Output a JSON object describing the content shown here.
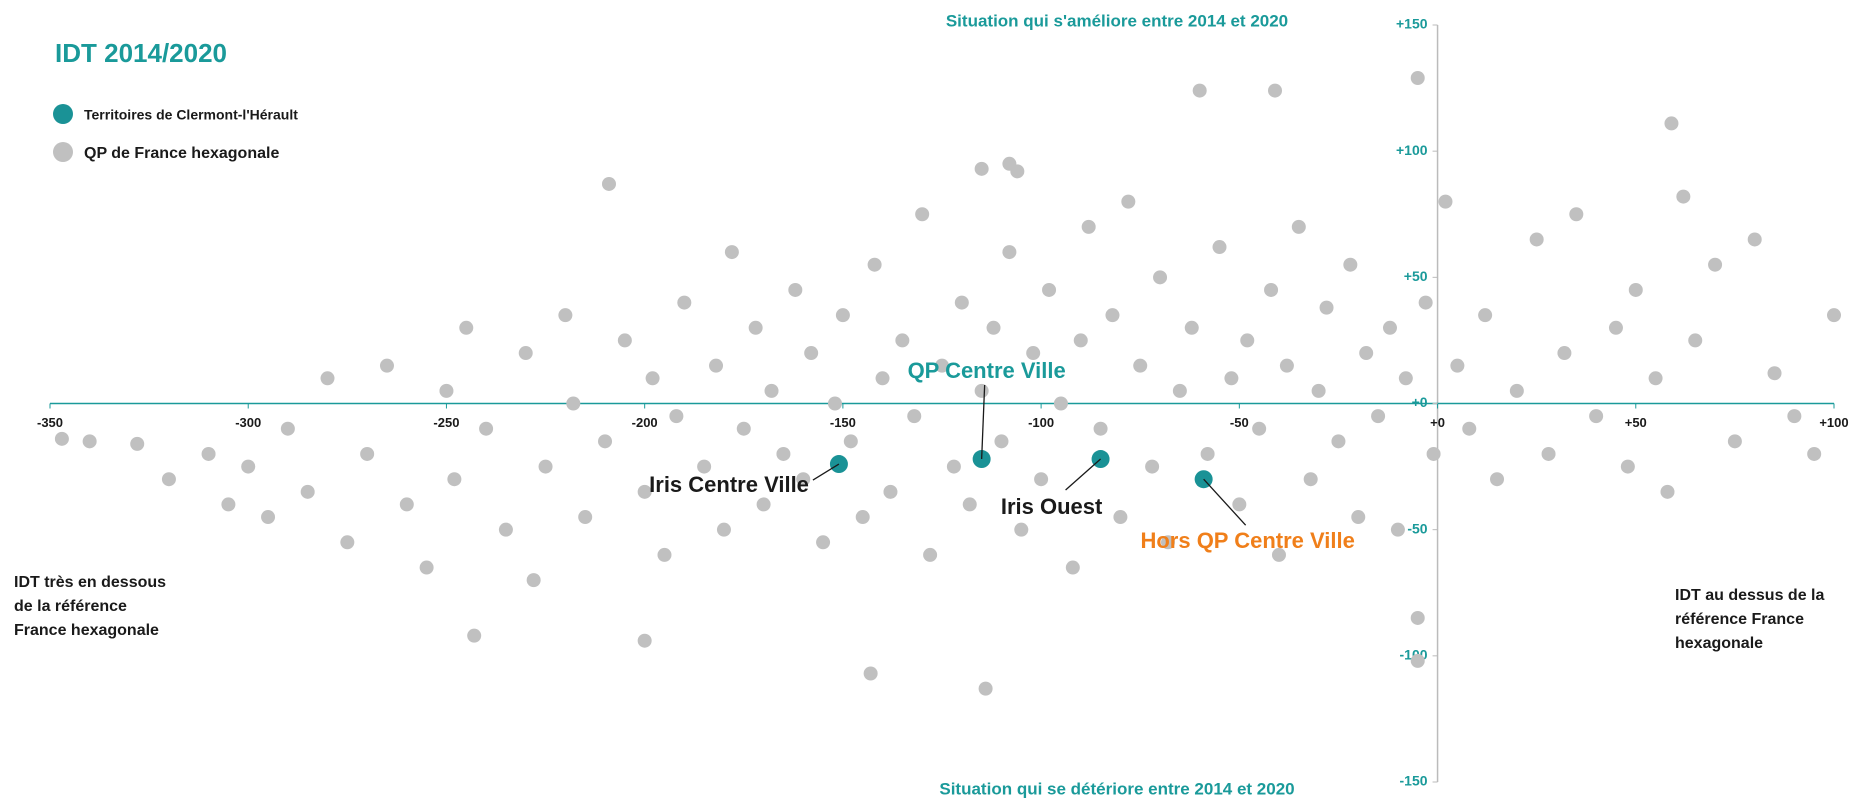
{
  "chart_data": {
    "type": "scatter",
    "title": "IDT 2014/2020",
    "top_annotation": "Situation qui s'améliore entre 2014 et 2020",
    "bottom_annotation": "Situation qui se détériore entre 2014 et 2020",
    "left_annotation": [
      "IDT très en dessous",
      "de la référence",
      "France hexagonale"
    ],
    "right_annotation": [
      "IDT au dessus de la",
      "référence France",
      "hexagonale"
    ],
    "xlim": [
      -350,
      100
    ],
    "ylim": [
      -150,
      150
    ],
    "xticks": [
      -350,
      -300,
      -250,
      -200,
      -150,
      -100,
      -50,
      {
        "value": 0,
        "label": "+0"
      },
      {
        "value": 50,
        "label": "+50"
      },
      {
        "value": 100,
        "label": "+100"
      }
    ],
    "yticks": [
      {
        "value": 150,
        "label": "+150"
      },
      {
        "value": 100,
        "label": "+100"
      },
      {
        "value": 50,
        "label": "+50"
      },
      {
        "value": 0,
        "label": "+0"
      },
      -50,
      -100,
      -150
    ],
    "axis_color": "#1a9a9a",
    "series": [
      {
        "name": "Territoires de Clermont-l'Hérault",
        "color": "#1a9296",
        "x": [
          -151,
          -115,
          -85,
          -59
        ],
        "values": [
          -24,
          -22,
          -22,
          -30
        ],
        "point_labels": [
          "Iris Centre Ville",
          "QP Centre Ville",
          "Iris Ouest",
          "Hors QP Centre Ville"
        ],
        "label_colors": [
          "#1a1a1a",
          "#1a9a9a",
          "#1a1a1a",
          "#f07f1a"
        ]
      },
      {
        "name": "QP de France hexagonale",
        "color": "#c0c0c0",
        "x": [
          -347,
          -340,
          -328,
          -320,
          -310,
          -305,
          -300,
          -295,
          -290,
          -285,
          -280,
          -275,
          -270,
          -265,
          -260,
          -255,
          -250,
          -248,
          -245,
          -240,
          -235,
          -230,
          -228,
          -225,
          -220,
          -218,
          -215,
          -210,
          -205,
          -200,
          -198,
          -195,
          -192,
          -190,
          -185,
          -182,
          -180,
          -178,
          -175,
          -172,
          -170,
          -168,
          -165,
          -162,
          -160,
          -158,
          -155,
          -152,
          -150,
          -148,
          -145,
          -142,
          -140,
          -138,
          -135,
          -132,
          -130,
          -128,
          -125,
          -122,
          -120,
          -118,
          -115,
          -112,
          -110,
          -108,
          -105,
          -102,
          -100,
          -98,
          -95,
          -92,
          -90,
          -88,
          -85,
          -82,
          -80,
          -78,
          -75,
          -72,
          -70,
          -68,
          -65,
          -62,
          -58,
          -55,
          -52,
          -50,
          -48,
          -45,
          -42,
          -40,
          -38,
          -35,
          -32,
          -30,
          -28,
          -25,
          -22,
          -20,
          -18,
          -15,
          -12,
          -10,
          -8,
          -5,
          -3,
          -1,
          2,
          5,
          8,
          12,
          15,
          20,
          25,
          28,
          32,
          35,
          40,
          45,
          48,
          50,
          55,
          58,
          62,
          65,
          70,
          75,
          80,
          85,
          90,
          95,
          100,
          -60,
          -41,
          -5,
          59,
          -115,
          -108,
          -106,
          -209,
          -114,
          -143,
          -5,
          -243,
          -200
        ],
        "values": [
          -14,
          -15,
          -16,
          -30,
          -20,
          -40,
          -25,
          -45,
          -10,
          -35,
          10,
          -55,
          -20,
          15,
          -40,
          -65,
          5,
          -30,
          30,
          -10,
          -50,
          20,
          -70,
          -25,
          35,
          0,
          -45,
          -15,
          25,
          -35,
          10,
          -60,
          -5,
          40,
          -25,
          15,
          -50,
          60,
          -10,
          30,
          -40,
          5,
          -20,
          45,
          -30,
          20,
          -55,
          0,
          35,
          -15,
          -45,
          55,
          10,
          -35,
          25,
          -5,
          75,
          -60,
          15,
          -25,
          40,
          -40,
          5,
          30,
          -15,
          60,
          -50,
          20,
          -30,
          45,
          0,
          -65,
          25,
          70,
          -10,
          35,
          -45,
          80,
          15,
          -25,
          50,
          -55,
          5,
          30,
          -20,
          62,
          10,
          -40,
          25,
          -10,
          45,
          -60,
          15,
          70,
          -30,
          5,
          38,
          -15,
          55,
          -45,
          20,
          -5,
          30,
          -50,
          10,
          -85,
          40,
          -20,
          80,
          15,
          -10,
          35,
          -30,
          5,
          65,
          -20,
          20,
          75,
          -5,
          30,
          -25,
          45,
          10,
          -35,
          82,
          25,
          55,
          -15,
          65,
          12,
          -5,
          -20,
          35,
          124,
          124,
          129,
          111,
          93,
          95,
          92,
          87,
          -113,
          -107,
          -102,
          -92,
          -94
        ]
      }
    ]
  }
}
